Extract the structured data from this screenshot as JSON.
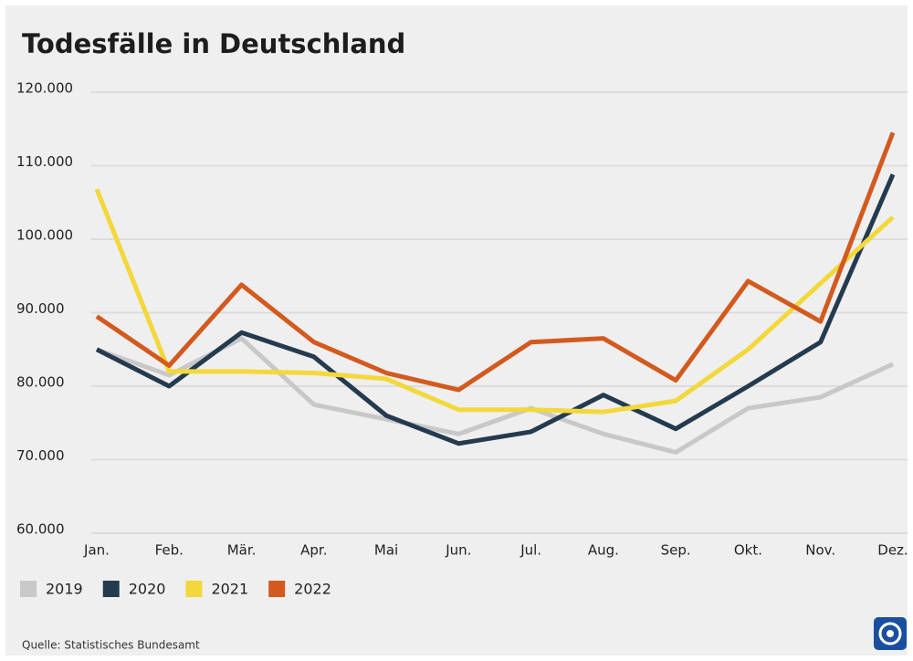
{
  "chart_data": {
    "type": "line",
    "title": "Todesfälle in Deutschland",
    "categories": [
      "Jan.",
      "Feb.",
      "Mär.",
      "Apr.",
      "Mai",
      "Jun.",
      "Jul.",
      "Aug.",
      "Sep.",
      "Okt.",
      "Nov.",
      "Dez."
    ],
    "series": [
      {
        "name": "2019",
        "color": "#c8c8c8",
        "values": [
          85000,
          81500,
          86500,
          77500,
          75500,
          73500,
          77000,
          73500,
          71000,
          77000,
          78500,
          83000
        ]
      },
      {
        "name": "2020",
        "color": "#243a4f",
        "values": [
          85000,
          80000,
          87300,
          84000,
          76000,
          72200,
          73800,
          78800,
          74200,
          80000,
          86000,
          108800
        ]
      },
      {
        "name": "2021",
        "color": "#f2d83a",
        "values": [
          106800,
          82000,
          82000,
          81800,
          81000,
          76800,
          76800,
          76500,
          78000,
          85000,
          94000,
          103000
        ]
      },
      {
        "name": "2022",
        "color": "#d35a1f",
        "values": [
          89500,
          82800,
          93800,
          86000,
          81800,
          79500,
          86000,
          86500,
          80800,
          94300,
          88800,
          114500
        ]
      }
    ],
    "ylim": [
      60000,
      120000
    ],
    "yticks": [
      {
        "value": 60000,
        "label": "60.000"
      },
      {
        "value": 70000,
        "label": "70.000"
      },
      {
        "value": 80000,
        "label": "80.000"
      },
      {
        "value": 90000,
        "label": "90.000"
      },
      {
        "value": 100000,
        "label": "100.000"
      },
      {
        "value": 110000,
        "label": "110.000"
      },
      {
        "value": 120000,
        "label": "120.000"
      }
    ],
    "grid": true,
    "source": "Quelle: Statistisches Bundesamt"
  }
}
